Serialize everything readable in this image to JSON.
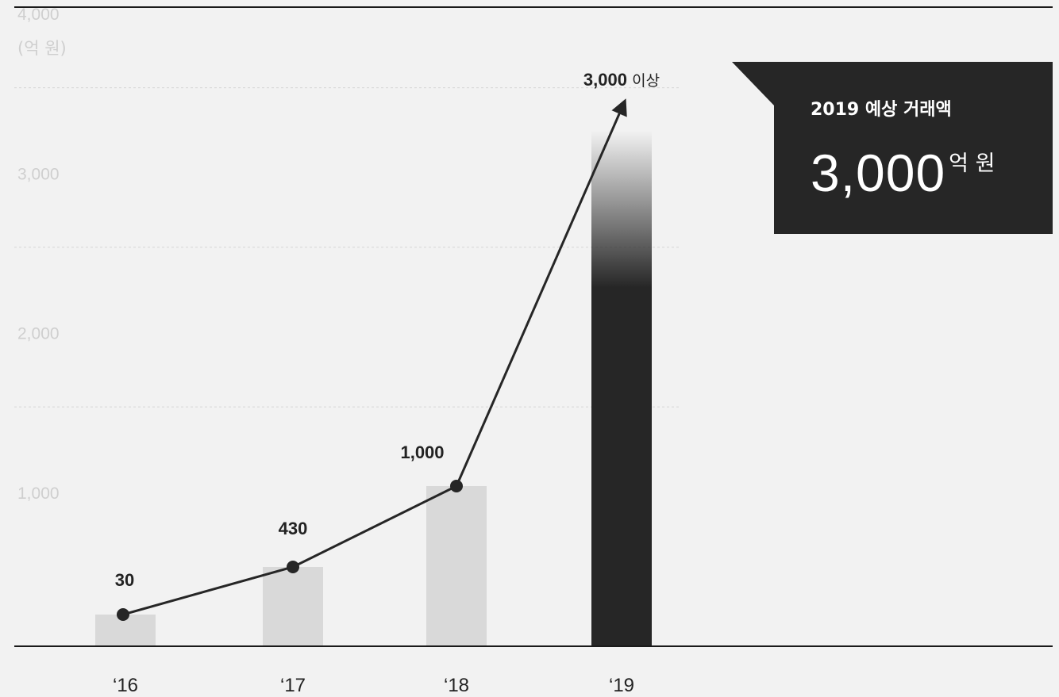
{
  "chart_data": {
    "type": "bar",
    "categories": [
      "‘16",
      "‘17",
      "‘18",
      "‘19"
    ],
    "values": [
      30,
      430,
      1000,
      3000
    ],
    "value_labels": [
      "30",
      "430",
      "1,000",
      "3,000"
    ],
    "last_value_suffix": "이상",
    "ylim": [
      0,
      4000
    ],
    "y_ticks": [
      1000,
      2000,
      3000,
      4000
    ],
    "y_tick_labels": [
      "1,000",
      "2,000",
      "3,000",
      "4,000"
    ],
    "y_unit": "(억 원)",
    "grid": true,
    "line_overlay": true,
    "colors": {
      "background": "#f2f2f2",
      "bar": "#d9d9d9",
      "highlight_bar": "#262626",
      "line": "#262626",
      "grid": "#d6d6d6",
      "tick": "#cfcfcf"
    }
  },
  "callout": {
    "title": "2019 예상 거래액",
    "value": "3,000",
    "unit": "억 원"
  }
}
